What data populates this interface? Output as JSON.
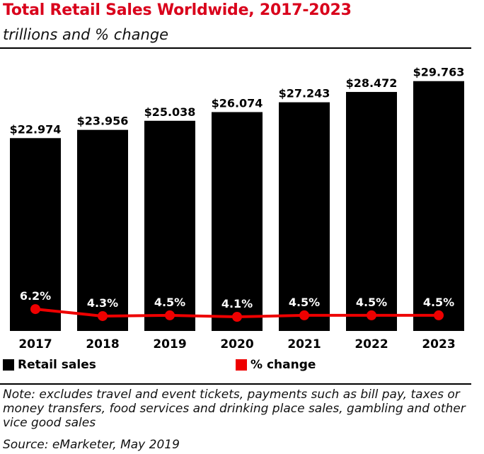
{
  "header": {
    "title": "Total Retail Sales Worldwide, 2017-2023",
    "subtitle": "trillions and % change"
  },
  "legend": {
    "retail_sales": "Retail sales",
    "pct_change": "% change"
  },
  "footer": {
    "note": "Note: excludes travel and event tickets, payments such as bill pay, taxes or money transfers, food services and drinking place sales, gambling and other vice good sales",
    "source": "Source: eMarketer, May 2019"
  },
  "colors": {
    "title": "#d9001b",
    "bar": "#000000",
    "line": "#ee0000"
  },
  "chart_data": {
    "type": "bar",
    "title": "Total Retail Sales Worldwide, 2017-2023",
    "subtitle": "trillions and % change",
    "categories": [
      "2017",
      "2018",
      "2019",
      "2020",
      "2021",
      "2022",
      "2023"
    ],
    "series": [
      {
        "name": "Retail sales",
        "type": "bar",
        "values": [
          22.974,
          23.956,
          25.038,
          26.074,
          27.243,
          28.472,
          29.763
        ],
        "labels": [
          "$22.974",
          "$23.956",
          "$25.038",
          "$26.074",
          "$27.243",
          "$28.472",
          "$29.763"
        ]
      },
      {
        "name": "% change",
        "type": "line",
        "values": [
          6.2,
          4.3,
          4.5,
          4.1,
          4.5,
          4.5,
          4.5
        ],
        "labels": [
          "6.2%",
          "4.3%",
          "4.5%",
          "4.1%",
          "4.5%",
          "4.5%",
          "4.5%"
        ]
      }
    ],
    "legend": "bottom-left",
    "grid": false
  }
}
